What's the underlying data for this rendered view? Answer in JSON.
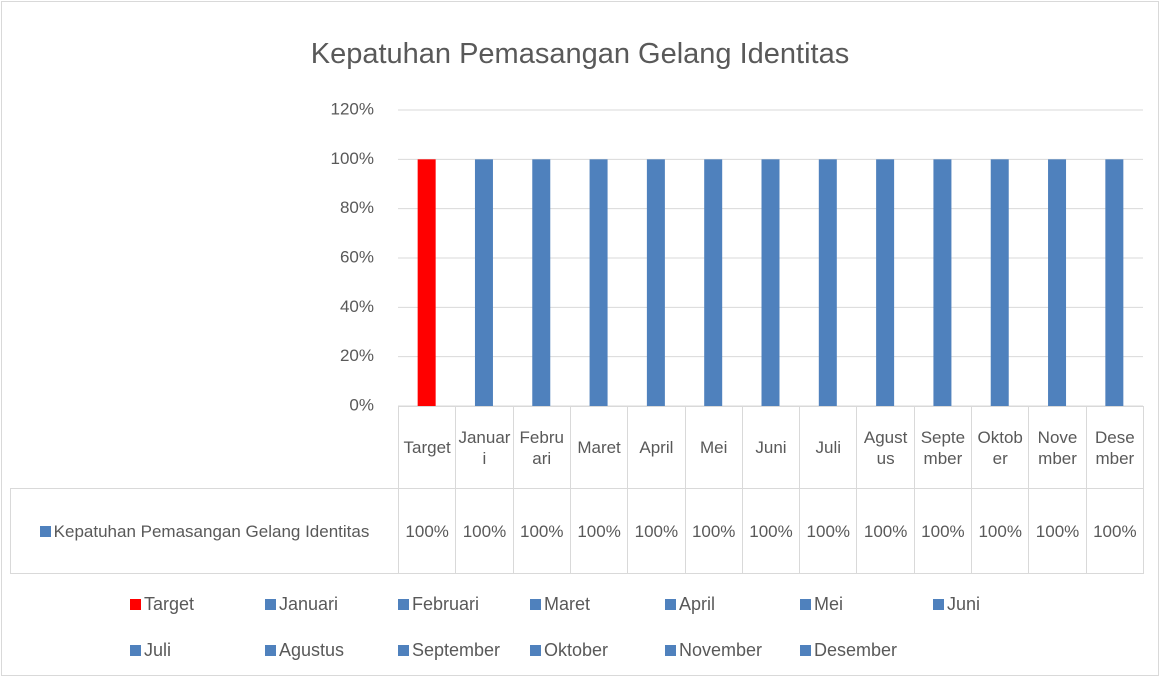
{
  "chart_data": {
    "type": "bar",
    "title": "Kepatuhan Pemasangan Gelang Identitas",
    "categories": [
      "Target",
      "Januari",
      "Februari",
      "Maret",
      "April",
      "Mei",
      "Juni",
      "Juli",
      "Agustus",
      "September",
      "Oktober",
      "November",
      "Desember"
    ],
    "series": [
      {
        "name": "Kepatuhan Pemasangan Gelang Identitas",
        "color": "#4f81bd",
        "point_colors": [
          "#ff0000",
          "#4f81bd",
          "#4f81bd",
          "#4f81bd",
          "#4f81bd",
          "#4f81bd",
          "#4f81bd",
          "#4f81bd",
          "#4f81bd",
          "#4f81bd",
          "#4f81bd",
          "#4f81bd",
          "#4f81bd"
        ],
        "values": [
          100,
          100,
          100,
          100,
          100,
          100,
          100,
          100,
          100,
          100,
          100,
          100,
          100
        ],
        "value_labels": [
          "100%",
          "100%",
          "100%",
          "100%",
          "100%",
          "100%",
          "100%",
          "100%",
          "100%",
          "100%",
          "100%",
          "100%",
          "100%"
        ]
      }
    ],
    "ylim": [
      0,
      120
    ],
    "yticks": [
      {
        "value": 0,
        "label": "0%"
      },
      {
        "value": 20,
        "label": "20%"
      },
      {
        "value": 40,
        "label": "40%"
      },
      {
        "value": 60,
        "label": "60%"
      },
      {
        "value": 80,
        "label": "80%"
      },
      {
        "value": 100,
        "label": "100%"
      },
      {
        "value": 120,
        "label": "120%"
      }
    ],
    "grid": true,
    "data_table": true,
    "legend": "bottom"
  }
}
